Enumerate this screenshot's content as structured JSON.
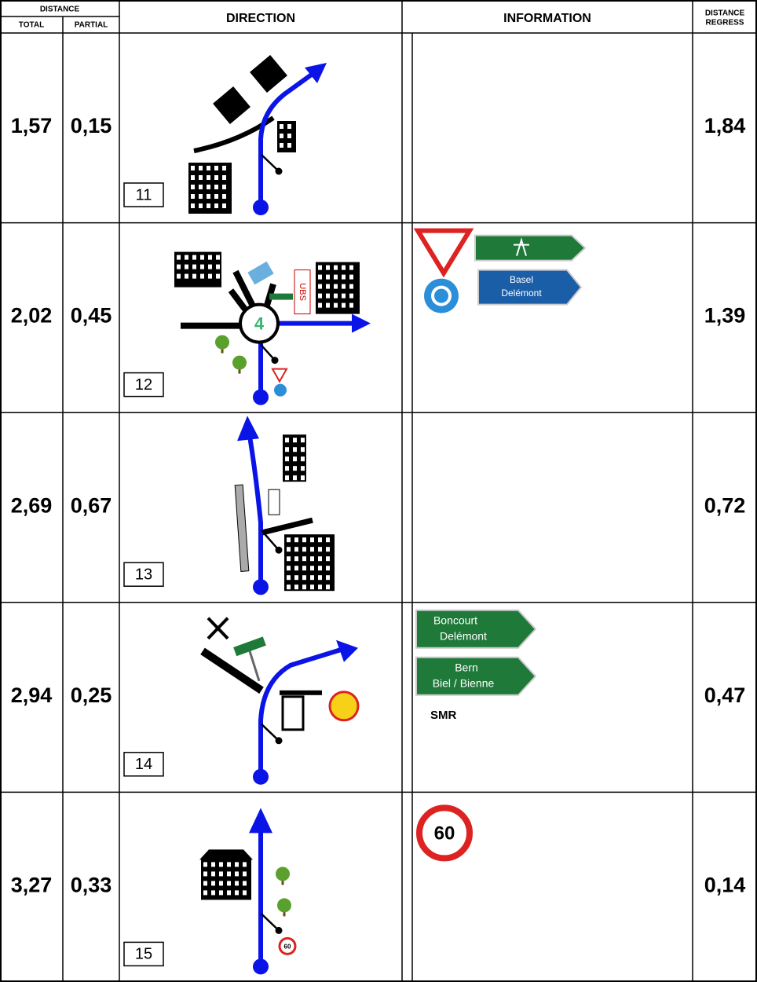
{
  "header": {
    "distance": "DISTANCE",
    "total": "TOTAL",
    "partial": "PARTIAL",
    "direction": "DIRECTION",
    "information": "INFORMATION",
    "regress_1": "DISTANCE",
    "regress_2": "REGRESS"
  },
  "rows": [
    {
      "total": "1,57",
      "partial": "0,15",
      "step": "11",
      "regress": "1,84"
    },
    {
      "total": "2,02",
      "partial": "0,45",
      "step": "12",
      "regress": "1,39",
      "roundabout": "4",
      "bank": "UBS",
      "sign_1": "Basel",
      "sign_2": "Delémont"
    },
    {
      "total": "2,69",
      "partial": "0,67",
      "step": "13",
      "regress": "0,72"
    },
    {
      "total": "2,94",
      "partial": "0,25",
      "step": "14",
      "regress": "0,47",
      "sign_1": "Boncourt",
      "sign_2": "Delémont",
      "sign_3": "Bern",
      "sign_4": "Biel / Bienne",
      "note": "SMR"
    },
    {
      "total": "3,27",
      "partial": "0,33",
      "step": "15",
      "regress": "0,14",
      "speed": "60",
      "speed_small": "60"
    }
  ]
}
